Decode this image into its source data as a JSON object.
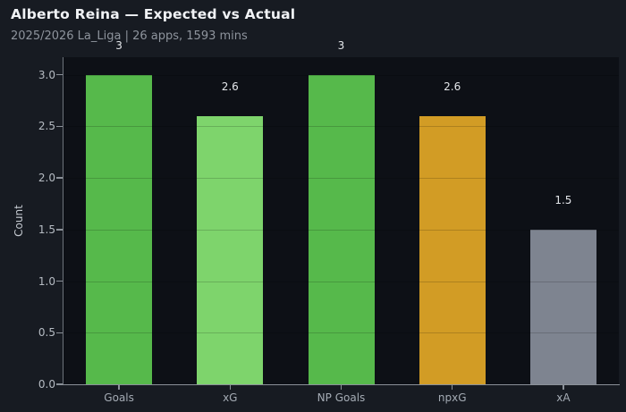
{
  "header": {
    "title": "Alberto Reina — Expected vs Actual",
    "subtitle": "2025/2026 La_Liga | 26 apps, 1593 mins"
  },
  "chart_data": {
    "type": "bar",
    "title": "Alberto Reina — Expected vs Actual",
    "subtitle": "2025/2026 La_Liga | 26 apps, 1593 mins",
    "categories": [
      "Goals",
      "xG",
      "NP Goals",
      "npxG",
      "xA"
    ],
    "values": [
      3,
      2.6,
      3,
      2.6,
      1.5
    ],
    "value_labels": [
      "3",
      "2.6",
      "3",
      "2.6",
      "1.5"
    ],
    "bar_colors": [
      "#56b94b",
      "#7ed46c",
      "#56b94b",
      "#d29c25",
      "#7e8490"
    ],
    "xlabel": "",
    "ylabel": "Count",
    "ylim": [
      0,
      3.17
    ],
    "yticks": [
      0,
      0.5,
      1,
      1.5,
      2,
      2.5,
      3
    ],
    "ytick_labels": [
      "0.0",
      "0.5",
      "1.0",
      "1.5",
      "2.0",
      "2.5",
      "3.0"
    ],
    "grid": true,
    "legend": "none",
    "colors": {
      "page_bg": "#171b22",
      "plot_bg": "#0d1016",
      "title": "#f0f2f5",
      "subtitle": "#8e949d",
      "axis": "#8b9199",
      "ytick_label": "#b6bcc3",
      "xtick_label": "#a4abb4",
      "value_label": "#e3e6ea"
    }
  }
}
